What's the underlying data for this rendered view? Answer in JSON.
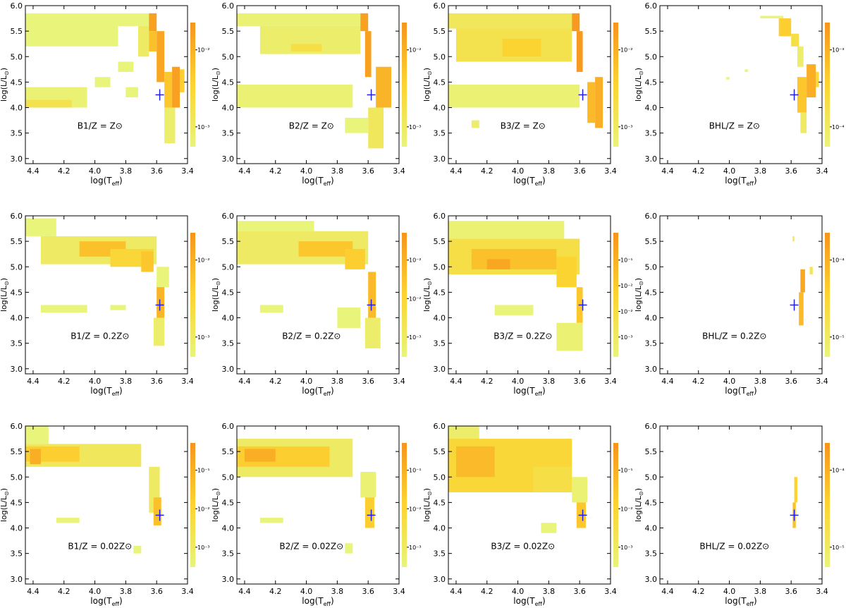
{
  "figure": {
    "xlabel": "log(T",
    "xlabel_sub": "eff",
    "ylabel_pre": "log(L/L",
    "ylabel_sun": "⊙",
    "ylabel_post": ")",
    "xticks": [
      "4.4",
      "4.2",
      "4.0",
      "3.8",
      "3.6",
      "3.4"
    ],
    "yticks": [
      "3.0",
      "3.5",
      "4.0",
      "4.5",
      "5.0",
      "5.5",
      "6.0"
    ],
    "sun_symbol": "⊙"
  },
  "colors": {
    "low": "#e8f47a",
    "mid": "#fcd431",
    "high": "#f7941d",
    "marker": "#1e1ee6",
    "axis": "#000000",
    "background": "#ffffff"
  },
  "chart_data": [
    {
      "type": "heatmap",
      "label": "B1/Z = Z⊙",
      "xlim": [
        4.45,
        3.4
      ],
      "ylim": [
        2.9,
        6.0
      ],
      "colorbar_ticks": [
        "10⁻²",
        "10⁻³"
      ],
      "marker": {
        "x": 3.58,
        "y": 4.25
      },
      "cells": [
        {
          "x0": 4.45,
          "x1": 3.65,
          "y0": 5.6,
          "y1": 5.85,
          "v": 0
        },
        {
          "x0": 4.45,
          "x1": 3.85,
          "y0": 5.2,
          "y1": 5.6,
          "v": 0
        },
        {
          "x0": 3.72,
          "x1": 3.65,
          "y0": 5.0,
          "y1": 5.6,
          "v": 0.15
        },
        {
          "x0": 3.65,
          "x1": 3.6,
          "y0": 5.5,
          "y1": 5.85,
          "v": 0.9
        },
        {
          "x0": 3.65,
          "x1": 3.6,
          "y0": 5.1,
          "y1": 5.5,
          "v": 0.65
        },
        {
          "x0": 3.6,
          "x1": 3.55,
          "y0": 4.5,
          "y1": 5.5,
          "v": 0.85
        },
        {
          "x0": 3.55,
          "x1": 3.5,
          "y0": 4.0,
          "y1": 4.7,
          "v": 0.6
        },
        {
          "x0": 3.5,
          "x1": 3.45,
          "y0": 4.0,
          "y1": 4.8,
          "v": 0.9
        },
        {
          "x0": 3.45,
          "x1": 3.42,
          "y0": 4.3,
          "y1": 4.75,
          "v": 0.55
        },
        {
          "x0": 3.55,
          "x1": 3.48,
          "y0": 3.3,
          "y1": 4.0,
          "v": 0.1
        },
        {
          "x0": 4.45,
          "x1": 4.05,
          "y0": 4.0,
          "y1": 4.4,
          "v": 0.05
        },
        {
          "x0": 4.45,
          "x1": 4.15,
          "y0": 4.0,
          "y1": 4.15,
          "v": 0.3
        },
        {
          "x0": 4.0,
          "x1": 3.9,
          "y0": 4.4,
          "y1": 4.6,
          "v": 0
        },
        {
          "x0": 3.85,
          "x1": 3.75,
          "y0": 4.7,
          "y1": 4.9,
          "v": 0
        },
        {
          "x0": 3.8,
          "x1": 3.72,
          "y0": 4.2,
          "y1": 4.4,
          "v": 0
        }
      ]
    },
    {
      "type": "heatmap",
      "label": "B2/Z = Z⊙",
      "xlim": [
        4.45,
        3.4
      ],
      "ylim": [
        2.9,
        6.0
      ],
      "colorbar_ticks": [
        "10⁻²",
        "10⁻³"
      ],
      "marker": {
        "x": 3.58,
        "y": 4.25
      },
      "cells": [
        {
          "x0": 4.45,
          "x1": 3.65,
          "y0": 5.6,
          "y1": 5.85,
          "v": 0.05
        },
        {
          "x0": 4.3,
          "x1": 3.65,
          "y0": 5.05,
          "y1": 5.6,
          "v": 0.1
        },
        {
          "x0": 4.1,
          "x1": 3.9,
          "y0": 5.1,
          "y1": 5.25,
          "v": 0.35
        },
        {
          "x0": 3.65,
          "x1": 3.6,
          "y0": 5.5,
          "y1": 5.85,
          "v": 0.9
        },
        {
          "x0": 3.62,
          "x1": 3.58,
          "y0": 4.6,
          "y1": 5.5,
          "v": 0.9
        },
        {
          "x0": 3.55,
          "x1": 3.45,
          "y0": 4.0,
          "y1": 4.8,
          "v": 0.75
        },
        {
          "x0": 3.6,
          "x1": 3.5,
          "y0": 3.2,
          "y1": 4.0,
          "v": 0.2
        },
        {
          "x0": 4.45,
          "x1": 3.7,
          "y0": 4.0,
          "y1": 4.45,
          "v": 0.05
        },
        {
          "x0": 3.75,
          "x1": 3.6,
          "y0": 3.5,
          "y1": 3.8,
          "v": 0
        }
      ]
    },
    {
      "type": "heatmap",
      "label": "B3/Z = Z⊙",
      "xlim": [
        4.45,
        3.4
      ],
      "ylim": [
        2.9,
        6.0
      ],
      "colorbar_ticks": [
        "10⁻²",
        "10⁻³"
      ],
      "marker": {
        "x": 3.58,
        "y": 4.25
      },
      "cells": [
        {
          "x0": 4.45,
          "x1": 3.65,
          "y0": 5.55,
          "y1": 5.85,
          "v": 0.2
        },
        {
          "x0": 4.4,
          "x1": 3.65,
          "y0": 4.9,
          "y1": 5.55,
          "v": 0.3
        },
        {
          "x0": 4.1,
          "x1": 3.85,
          "y0": 5.0,
          "y1": 5.35,
          "v": 0.5
        },
        {
          "x0": 3.65,
          "x1": 3.6,
          "y0": 5.5,
          "y1": 5.85,
          "v": 0.95
        },
        {
          "x0": 3.62,
          "x1": 3.58,
          "y0": 4.7,
          "y1": 5.5,
          "v": 0.95
        },
        {
          "x0": 3.55,
          "x1": 3.5,
          "y0": 3.7,
          "y1": 4.5,
          "v": 0.7
        },
        {
          "x0": 3.5,
          "x1": 3.45,
          "y0": 3.6,
          "y1": 4.6,
          "v": 0.8
        },
        {
          "x0": 4.45,
          "x1": 3.6,
          "y0": 4.0,
          "y1": 4.45,
          "v": 0.05
        },
        {
          "x0": 4.3,
          "x1": 4.25,
          "y0": 3.6,
          "y1": 3.75,
          "v": 0.1
        }
      ]
    },
    {
      "type": "heatmap",
      "label": "BHL/Z = Z⊙",
      "xlim": [
        4.45,
        3.4
      ],
      "ylim": [
        2.9,
        6.0
      ],
      "colorbar_ticks": [
        "10⁻³",
        "10⁻⁴"
      ],
      "marker": {
        "x": 3.58,
        "y": 4.25
      },
      "cells": [
        {
          "x0": 3.8,
          "x1": 3.65,
          "y0": 5.75,
          "y1": 5.8,
          "v": 0
        },
        {
          "x0": 3.68,
          "x1": 3.6,
          "y0": 5.4,
          "y1": 5.75,
          "v": 0.55
        },
        {
          "x0": 3.6,
          "x1": 3.55,
          "y0": 5.2,
          "y1": 5.45,
          "v": 0.35
        },
        {
          "x0": 3.56,
          "x1": 3.52,
          "y0": 4.8,
          "y1": 5.2,
          "v": 0.1
        },
        {
          "x0": 3.5,
          "x1": 3.44,
          "y0": 4.2,
          "y1": 4.85,
          "v": 0.8
        },
        {
          "x0": 3.56,
          "x1": 3.5,
          "y0": 3.9,
          "y1": 4.6,
          "v": 0.6
        },
        {
          "x0": 3.44,
          "x1": 3.42,
          "y0": 4.4,
          "y1": 4.7,
          "v": 0.4
        },
        {
          "x0": 3.54,
          "x1": 3.5,
          "y0": 3.5,
          "y1": 3.9,
          "v": 0.15
        },
        {
          "x0": 3.9,
          "x1": 3.88,
          "y0": 4.7,
          "y1": 4.75,
          "v": 0
        },
        {
          "x0": 4.02,
          "x1": 4.0,
          "y0": 4.55,
          "y1": 4.6,
          "v": 0
        }
      ]
    },
    {
      "type": "heatmap",
      "label": "B1/Z = 0.2Z⊙",
      "xlim": [
        4.45,
        3.4
      ],
      "ylim": [
        2.9,
        6.0
      ],
      "colorbar_ticks": [
        "10⁻²",
        "10⁻³"
      ],
      "marker": {
        "x": 3.58,
        "y": 4.25
      },
      "cells": [
        {
          "x0": 4.45,
          "x1": 4.25,
          "y0": 5.6,
          "y1": 5.95,
          "v": 0
        },
        {
          "x0": 4.35,
          "x1": 3.6,
          "y0": 5.05,
          "y1": 5.6,
          "v": 0.15
        },
        {
          "x0": 4.1,
          "x1": 3.8,
          "y0": 5.2,
          "y1": 5.5,
          "v": 0.65
        },
        {
          "x0": 3.9,
          "x1": 3.62,
          "y0": 5.0,
          "y1": 5.35,
          "v": 0.45
        },
        {
          "x0": 3.7,
          "x1": 3.62,
          "y0": 4.9,
          "y1": 5.3,
          "v": 0.6
        },
        {
          "x0": 3.6,
          "x1": 3.55,
          "y0": 4.0,
          "y1": 4.7,
          "v": 0.75
        },
        {
          "x0": 3.62,
          "x1": 3.55,
          "y0": 3.45,
          "y1": 4.0,
          "v": 0.1
        },
        {
          "x0": 3.6,
          "x1": 3.52,
          "y0": 4.6,
          "y1": 5.0,
          "v": 0
        },
        {
          "x0": 4.35,
          "x1": 4.05,
          "y0": 4.1,
          "y1": 4.25,
          "v": 0
        },
        {
          "x0": 3.9,
          "x1": 3.8,
          "y0": 4.15,
          "y1": 4.25,
          "v": 0
        }
      ]
    },
    {
      "type": "heatmap",
      "label": "B2/Z = 0.2Z⊙",
      "xlim": [
        4.45,
        3.4
      ],
      "ylim": [
        2.9,
        6.0
      ],
      "colorbar_ticks": [
        "10⁻²",
        "10⁻²",
        "10⁻³"
      ],
      "marker": {
        "x": 3.58,
        "y": 4.25
      },
      "cells": [
        {
          "x0": 4.45,
          "x1": 3.95,
          "y0": 5.7,
          "y1": 5.9,
          "v": 0
        },
        {
          "x0": 4.45,
          "x1": 3.6,
          "y0": 5.05,
          "y1": 5.7,
          "v": 0.15
        },
        {
          "x0": 4.05,
          "x1": 3.7,
          "y0": 5.2,
          "y1": 5.5,
          "v": 0.6
        },
        {
          "x0": 3.75,
          "x1": 3.62,
          "y0": 4.95,
          "y1": 5.35,
          "v": 0.55
        },
        {
          "x0": 3.6,
          "x1": 3.55,
          "y0": 4.0,
          "y1": 4.9,
          "v": 0.7
        },
        {
          "x0": 3.62,
          "x1": 3.52,
          "y0": 3.4,
          "y1": 4.0,
          "v": 0.1
        },
        {
          "x0": 4.3,
          "x1": 4.15,
          "y0": 4.1,
          "y1": 4.25,
          "v": 0
        },
        {
          "x0": 3.8,
          "x1": 3.65,
          "y0": 3.8,
          "y1": 4.2,
          "v": 0
        }
      ]
    },
    {
      "type": "heatmap",
      "label": "B3/Z = 0.2Z⊙",
      "xlim": [
        4.45,
        3.4
      ],
      "ylim": [
        2.9,
        6.0
      ],
      "colorbar_ticks": [
        "10⁻¹",
        "10⁻²",
        "10⁻²",
        "10⁻³"
      ],
      "marker": {
        "x": 3.58,
        "y": 4.25
      },
      "cells": [
        {
          "x0": 4.45,
          "x1": 3.7,
          "y0": 5.55,
          "y1": 5.9,
          "v": 0.05
        },
        {
          "x0": 4.45,
          "x1": 3.6,
          "y0": 4.85,
          "y1": 5.55,
          "v": 0.35
        },
        {
          "x0": 4.3,
          "x1": 3.75,
          "y0": 4.95,
          "y1": 5.35,
          "v": 0.65
        },
        {
          "x0": 4.2,
          "x1": 4.05,
          "y0": 4.95,
          "y1": 5.15,
          "v": 0.85
        },
        {
          "x0": 3.75,
          "x1": 3.62,
          "y0": 4.6,
          "y1": 5.2,
          "v": 0.5
        },
        {
          "x0": 3.62,
          "x1": 3.58,
          "y0": 3.9,
          "y1": 4.6,
          "v": 0.6
        },
        {
          "x0": 3.75,
          "x1": 3.58,
          "y0": 3.35,
          "y1": 3.9,
          "v": 0.05
        },
        {
          "x0": 4.15,
          "x1": 3.9,
          "y0": 4.05,
          "y1": 4.25,
          "v": 0
        }
      ]
    },
    {
      "type": "heatmap",
      "label": "BHL/Z = 0.2Z⊙",
      "xlim": [
        4.45,
        3.4
      ],
      "ylim": [
        2.9,
        6.0
      ],
      "colorbar_ticks": [
        "10⁻⁴",
        "10⁻⁵"
      ],
      "marker": {
        "x": 3.58,
        "y": 4.25
      },
      "cells": [
        {
          "x0": 3.59,
          "x1": 3.58,
          "y0": 5.5,
          "y1": 5.6,
          "v": 0.3
        },
        {
          "x0": 3.54,
          "x1": 3.51,
          "y0": 4.5,
          "y1": 4.95,
          "v": 0.85
        },
        {
          "x0": 3.55,
          "x1": 3.52,
          "y0": 3.85,
          "y1": 4.5,
          "v": 0.7
        },
        {
          "x0": 3.48,
          "x1": 3.46,
          "y0": 4.85,
          "y1": 5.0,
          "v": 0.2
        }
      ]
    },
    {
      "type": "heatmap",
      "label": "B1/Z = 0.02Z⊙",
      "xlim": [
        4.45,
        3.4
      ],
      "ylim": [
        2.9,
        6.0
      ],
      "colorbar_ticks": [
        "10⁻¹",
        "10⁻²",
        "10⁻³"
      ],
      "marker": {
        "x": 3.58,
        "y": 4.25
      },
      "cells": [
        {
          "x0": 4.45,
          "x1": 4.3,
          "y0": 5.65,
          "y1": 6.0,
          "v": 0
        },
        {
          "x0": 4.45,
          "x1": 3.7,
          "y0": 5.2,
          "y1": 5.65,
          "v": 0.2
        },
        {
          "x0": 4.45,
          "x1": 4.1,
          "y0": 5.3,
          "y1": 5.6,
          "v": 0.55
        },
        {
          "x0": 4.42,
          "x1": 4.35,
          "y0": 5.25,
          "y1": 5.55,
          "v": 0.8
        },
        {
          "x0": 3.65,
          "x1": 3.58,
          "y0": 4.3,
          "y1": 5.2,
          "v": 0.15
        },
        {
          "x0": 3.62,
          "x1": 3.57,
          "y0": 4.05,
          "y1": 4.6,
          "v": 0.65
        },
        {
          "x0": 4.25,
          "x1": 4.1,
          "y0": 4.1,
          "y1": 4.2,
          "v": 0
        },
        {
          "x0": 3.75,
          "x1": 3.7,
          "y0": 3.5,
          "y1": 3.65,
          "v": 0
        }
      ]
    },
    {
      "type": "heatmap",
      "label": "B2/Z = 0.02Z⊙",
      "xlim": [
        4.45,
        3.4
      ],
      "ylim": [
        2.9,
        6.0
      ],
      "colorbar_ticks": [
        "10⁻¹",
        "10⁻²",
        "10⁻³"
      ],
      "marker": {
        "x": 3.58,
        "y": 4.25
      },
      "cells": [
        {
          "x0": 4.45,
          "x1": 3.7,
          "y0": 5.0,
          "y1": 5.75,
          "v": 0.15
        },
        {
          "x0": 4.45,
          "x1": 3.85,
          "y0": 5.2,
          "y1": 5.6,
          "v": 0.55
        },
        {
          "x0": 4.4,
          "x1": 4.2,
          "y0": 5.3,
          "y1": 5.55,
          "v": 0.8
        },
        {
          "x0": 3.65,
          "x1": 3.55,
          "y0": 4.6,
          "y1": 5.1,
          "v": 0.05
        },
        {
          "x0": 3.62,
          "x1": 3.56,
          "y0": 4.0,
          "y1": 4.6,
          "v": 0.55
        },
        {
          "x0": 4.3,
          "x1": 4.15,
          "y0": 4.1,
          "y1": 4.2,
          "v": 0
        },
        {
          "x0": 3.75,
          "x1": 3.7,
          "y0": 3.5,
          "y1": 3.7,
          "v": 0
        }
      ]
    },
    {
      "type": "heatmap",
      "label": "B3/Z = 0.02Z⊙",
      "xlim": [
        4.45,
        3.4
      ],
      "ylim": [
        2.9,
        6.0
      ],
      "colorbar_ticks": [
        "10⁻¹",
        "10⁻²",
        "10⁻³"
      ],
      "marker": {
        "x": 3.58,
        "y": 4.25
      },
      "cells": [
        {
          "x0": 4.45,
          "x1": 4.25,
          "y0": 5.7,
          "y1": 6.0,
          "v": 0.1
        },
        {
          "x0": 4.45,
          "x1": 3.65,
          "y0": 4.7,
          "y1": 5.75,
          "v": 0.45
        },
        {
          "x0": 4.4,
          "x1": 4.15,
          "y0": 5.0,
          "y1": 5.6,
          "v": 0.7
        },
        {
          "x0": 3.9,
          "x1": 3.65,
          "y0": 4.7,
          "y1": 5.2,
          "v": 0.35
        },
        {
          "x0": 3.65,
          "x1": 3.55,
          "y0": 4.5,
          "y1": 5.0,
          "v": 0.05
        },
        {
          "x0": 3.62,
          "x1": 3.56,
          "y0": 4.0,
          "y1": 4.5,
          "v": 0.6
        },
        {
          "x0": 3.85,
          "x1": 3.75,
          "y0": 3.9,
          "y1": 4.1,
          "v": 0
        }
      ]
    },
    {
      "type": "heatmap",
      "label": "BHL/Z = 0.02Z⊙",
      "xlim": [
        4.45,
        3.4
      ],
      "ylim": [
        2.9,
        6.0
      ],
      "colorbar_ticks": [
        "10⁻⁴",
        "10⁻⁵"
      ],
      "marker": {
        "x": 3.58,
        "y": 4.25
      },
      "cells": [
        {
          "x0": 3.58,
          "x1": 3.56,
          "y0": 4.5,
          "y1": 5.0,
          "v": 0.5
        },
        {
          "x0": 3.59,
          "x1": 3.57,
          "y0": 4.0,
          "y1": 4.5,
          "v": 0.65
        }
      ]
    }
  ]
}
